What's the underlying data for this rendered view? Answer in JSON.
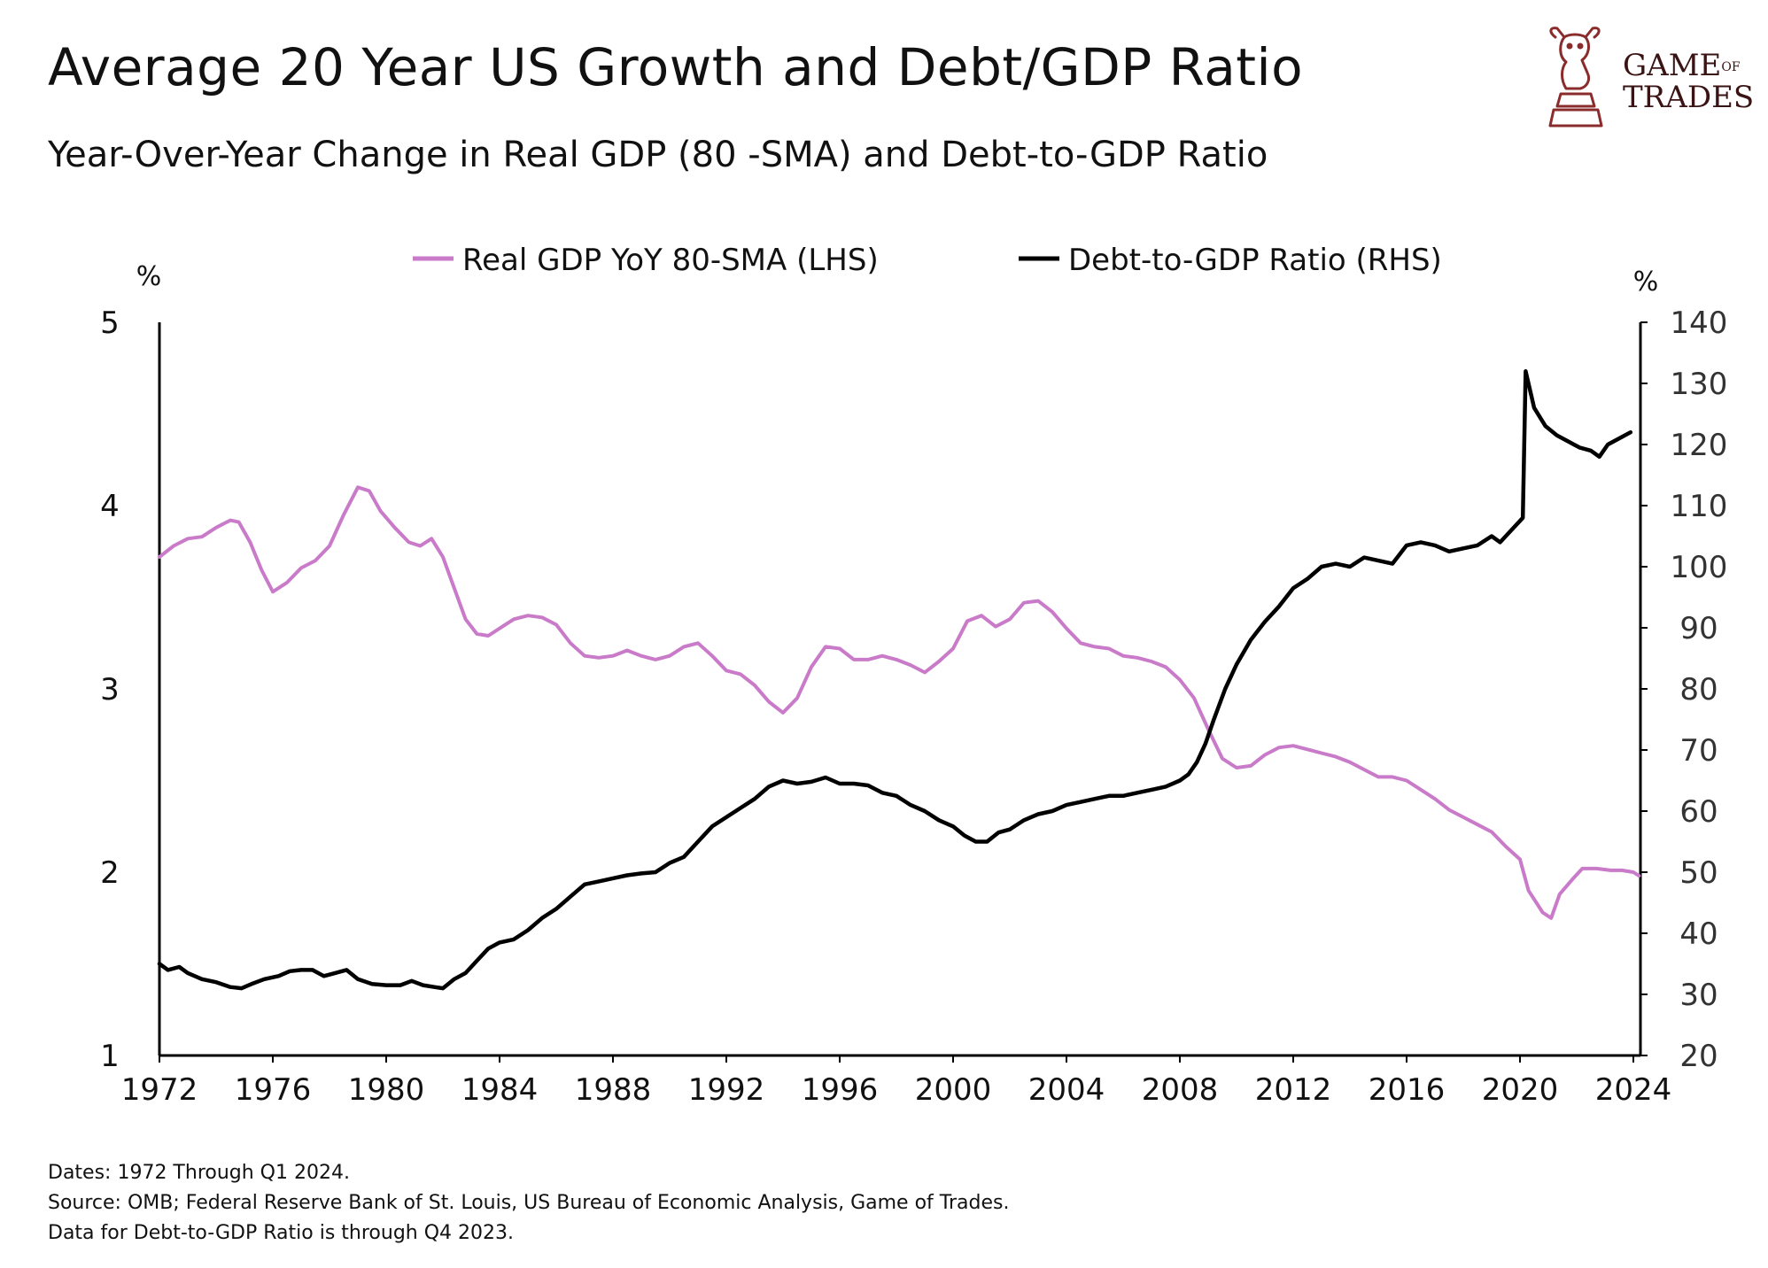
{
  "header": {
    "title": "Average 20 Year US Growth and Debt/GDP Ratio",
    "subtitle": "Year-Over-Year Change in Real GDP (80 -SMA) and Debt-to-GDP Ratio"
  },
  "logo": {
    "line1_main": "GAME",
    "line1_small": "OF",
    "line2": "TRADES",
    "color": "#8b2c2c"
  },
  "footnotes": [
    "Dates: 1972 Through Q1 2024.",
    "Source: OMB; Federal Reserve Bank of St. Louis, US Bureau of Economic Analysis, Game of Trades.",
    "Data for Debt-to-GDP Ratio is through Q4 2023."
  ],
  "chart_data": {
    "type": "line",
    "grid": false,
    "legend_position": "top-center",
    "x_ticks": [
      "1972",
      "1976",
      "1980",
      "1984",
      "1988",
      "1992",
      "1996",
      "2000",
      "2004",
      "2008",
      "2012",
      "2016",
      "2020",
      "2024"
    ],
    "xlim": [
      1972,
      2024.25
    ],
    "left_axis": {
      "unit": "%",
      "ylim": [
        1,
        5
      ],
      "ticks": [
        "1",
        "2",
        "3",
        "4",
        "5"
      ]
    },
    "right_axis": {
      "unit": "%",
      "ylim": [
        20,
        140
      ],
      "ticks": [
        "20",
        "30",
        "40",
        "50",
        "60",
        "70",
        "80",
        "90",
        "100",
        "110",
        "120",
        "130",
        "140"
      ]
    },
    "series": [
      {
        "name": "Real GDP YoY 80-SMA (LHS)",
        "axis": "left",
        "color": "#c97ac9",
        "points": [
          [
            1972.0,
            3.72
          ],
          [
            1972.5,
            3.78
          ],
          [
            1973.0,
            3.82
          ],
          [
            1973.5,
            3.83
          ],
          [
            1974.0,
            3.88
          ],
          [
            1974.5,
            3.92
          ],
          [
            1974.8,
            3.91
          ],
          [
            1975.2,
            3.8
          ],
          [
            1975.6,
            3.65
          ],
          [
            1976.0,
            3.53
          ],
          [
            1976.5,
            3.58
          ],
          [
            1977.0,
            3.66
          ],
          [
            1977.5,
            3.7
          ],
          [
            1978.0,
            3.78
          ],
          [
            1978.5,
            3.95
          ],
          [
            1979.0,
            4.1
          ],
          [
            1979.4,
            4.08
          ],
          [
            1979.8,
            3.97
          ],
          [
            1980.3,
            3.88
          ],
          [
            1980.8,
            3.8
          ],
          [
            1981.2,
            3.78
          ],
          [
            1981.6,
            3.82
          ],
          [
            1982.0,
            3.72
          ],
          [
            1982.4,
            3.55
          ],
          [
            1982.8,
            3.38
          ],
          [
            1983.2,
            3.3
          ],
          [
            1983.6,
            3.29
          ],
          [
            1984.0,
            3.33
          ],
          [
            1984.5,
            3.38
          ],
          [
            1985.0,
            3.4
          ],
          [
            1985.5,
            3.39
          ],
          [
            1986.0,
            3.35
          ],
          [
            1986.5,
            3.25
          ],
          [
            1987.0,
            3.18
          ],
          [
            1987.5,
            3.17
          ],
          [
            1988.0,
            3.18
          ],
          [
            1988.5,
            3.21
          ],
          [
            1989.0,
            3.18
          ],
          [
            1989.5,
            3.16
          ],
          [
            1990.0,
            3.18
          ],
          [
            1990.5,
            3.23
          ],
          [
            1991.0,
            3.25
          ],
          [
            1991.5,
            3.18
          ],
          [
            1992.0,
            3.1
          ],
          [
            1992.5,
            3.08
          ],
          [
            1993.0,
            3.02
          ],
          [
            1993.5,
            2.93
          ],
          [
            1994.0,
            2.87
          ],
          [
            1994.5,
            2.95
          ],
          [
            1995.0,
            3.12
          ],
          [
            1995.5,
            3.23
          ],
          [
            1996.0,
            3.22
          ],
          [
            1996.5,
            3.16
          ],
          [
            1997.0,
            3.16
          ],
          [
            1997.5,
            3.18
          ],
          [
            1998.0,
            3.16
          ],
          [
            1998.5,
            3.13
          ],
          [
            1999.0,
            3.09
          ],
          [
            1999.5,
            3.15
          ],
          [
            2000.0,
            3.22
          ],
          [
            2000.5,
            3.37
          ],
          [
            2001.0,
            3.4
          ],
          [
            2001.5,
            3.34
          ],
          [
            2002.0,
            3.38
          ],
          [
            2002.5,
            3.47
          ],
          [
            2003.0,
            3.48
          ],
          [
            2003.5,
            3.42
          ],
          [
            2004.0,
            3.33
          ],
          [
            2004.5,
            3.25
          ],
          [
            2005.0,
            3.23
          ],
          [
            2005.5,
            3.22
          ],
          [
            2006.0,
            3.18
          ],
          [
            2006.5,
            3.17
          ],
          [
            2007.0,
            3.15
          ],
          [
            2007.5,
            3.12
          ],
          [
            2008.0,
            3.05
          ],
          [
            2008.5,
            2.95
          ],
          [
            2009.0,
            2.78
          ],
          [
            2009.5,
            2.62
          ],
          [
            2010.0,
            2.57
          ],
          [
            2010.5,
            2.58
          ],
          [
            2011.0,
            2.64
          ],
          [
            2011.5,
            2.68
          ],
          [
            2012.0,
            2.69
          ],
          [
            2012.5,
            2.67
          ],
          [
            2013.0,
            2.65
          ],
          [
            2013.5,
            2.63
          ],
          [
            2014.0,
            2.6
          ],
          [
            2014.5,
            2.56
          ],
          [
            2015.0,
            2.52
          ],
          [
            2015.5,
            2.52
          ],
          [
            2016.0,
            2.5
          ],
          [
            2016.5,
            2.45
          ],
          [
            2017.0,
            2.4
          ],
          [
            2017.5,
            2.34
          ],
          [
            2018.0,
            2.3
          ],
          [
            2018.5,
            2.26
          ],
          [
            2019.0,
            2.22
          ],
          [
            2019.5,
            2.14
          ],
          [
            2020.0,
            2.07
          ],
          [
            2020.3,
            1.9
          ],
          [
            2020.8,
            1.78
          ],
          [
            2021.1,
            1.75
          ],
          [
            2021.4,
            1.88
          ],
          [
            2021.9,
            1.97
          ],
          [
            2022.2,
            2.02
          ],
          [
            2022.7,
            2.02
          ],
          [
            2023.2,
            2.01
          ],
          [
            2023.6,
            2.01
          ],
          [
            2024.0,
            2.0
          ],
          [
            2024.2,
            1.98
          ]
        ]
      },
      {
        "name": "Debt-to-GDP Ratio (RHS)",
        "axis": "right",
        "color": "#000000",
        "points": [
          [
            1972.0,
            35.0
          ],
          [
            1972.3,
            34.0
          ],
          [
            1972.7,
            34.5
          ],
          [
            1973.0,
            33.5
          ],
          [
            1973.5,
            32.5
          ],
          [
            1974.0,
            32.0
          ],
          [
            1974.5,
            31.2
          ],
          [
            1974.9,
            31.0
          ],
          [
            1975.3,
            31.8
          ],
          [
            1975.7,
            32.5
          ],
          [
            1976.2,
            33.0
          ],
          [
            1976.6,
            33.8
          ],
          [
            1977.0,
            34.0
          ],
          [
            1977.4,
            34.0
          ],
          [
            1977.8,
            33.0
          ],
          [
            1978.2,
            33.5
          ],
          [
            1978.6,
            34.0
          ],
          [
            1979.0,
            32.5
          ],
          [
            1979.5,
            31.7
          ],
          [
            1980.0,
            31.5
          ],
          [
            1980.5,
            31.5
          ],
          [
            1980.9,
            32.2
          ],
          [
            1981.3,
            31.5
          ],
          [
            1981.7,
            31.2
          ],
          [
            1982.0,
            31.0
          ],
          [
            1982.4,
            32.5
          ],
          [
            1982.8,
            33.5
          ],
          [
            1983.2,
            35.5
          ],
          [
            1983.6,
            37.5
          ],
          [
            1984.0,
            38.5
          ],
          [
            1984.5,
            39.0
          ],
          [
            1985.0,
            40.5
          ],
          [
            1985.5,
            42.5
          ],
          [
            1986.0,
            44.0
          ],
          [
            1986.5,
            46.0
          ],
          [
            1987.0,
            48.0
          ],
          [
            1987.5,
            48.5
          ],
          [
            1988.0,
            49.0
          ],
          [
            1988.5,
            49.5
          ],
          [
            1989.0,
            49.8
          ],
          [
            1989.5,
            50.0
          ],
          [
            1990.0,
            51.5
          ],
          [
            1990.5,
            52.5
          ],
          [
            1991.0,
            55.0
          ],
          [
            1991.5,
            57.5
          ],
          [
            1992.0,
            59.0
          ],
          [
            1992.5,
            60.5
          ],
          [
            1993.0,
            62.0
          ],
          [
            1993.5,
            64.0
          ],
          [
            1994.0,
            65.0
          ],
          [
            1994.5,
            64.5
          ],
          [
            1995.0,
            64.8
          ],
          [
            1995.5,
            65.5
          ],
          [
            1996.0,
            64.5
          ],
          [
            1996.5,
            64.5
          ],
          [
            1997.0,
            64.2
          ],
          [
            1997.5,
            63.0
          ],
          [
            1998.0,
            62.5
          ],
          [
            1998.5,
            61.0
          ],
          [
            1999.0,
            60.0
          ],
          [
            1999.5,
            58.5
          ],
          [
            2000.0,
            57.5
          ],
          [
            2000.4,
            56.0
          ],
          [
            2000.8,
            55.0
          ],
          [
            2001.2,
            55.0
          ],
          [
            2001.6,
            56.5
          ],
          [
            2002.0,
            57.0
          ],
          [
            2002.5,
            58.5
          ],
          [
            2003.0,
            59.5
          ],
          [
            2003.5,
            60.0
          ],
          [
            2004.0,
            61.0
          ],
          [
            2004.5,
            61.5
          ],
          [
            2005.0,
            62.0
          ],
          [
            2005.5,
            62.5
          ],
          [
            2006.0,
            62.5
          ],
          [
            2006.5,
            63.0
          ],
          [
            2007.0,
            63.5
          ],
          [
            2007.5,
            64.0
          ],
          [
            2008.0,
            65.0
          ],
          [
            2008.3,
            66.0
          ],
          [
            2008.6,
            68.0
          ],
          [
            2008.9,
            71.0
          ],
          [
            2009.2,
            75.0
          ],
          [
            2009.6,
            80.0
          ],
          [
            2010.0,
            84.0
          ],
          [
            2010.5,
            88.0
          ],
          [
            2011.0,
            91.0
          ],
          [
            2011.5,
            93.5
          ],
          [
            2012.0,
            96.5
          ],
          [
            2012.5,
            98.0
          ],
          [
            2013.0,
            100.0
          ],
          [
            2013.5,
            100.5
          ],
          [
            2014.0,
            100.0
          ],
          [
            2014.5,
            101.5
          ],
          [
            2015.0,
            101.0
          ],
          [
            2015.5,
            100.5
          ],
          [
            2016.0,
            103.5
          ],
          [
            2016.5,
            104.0
          ],
          [
            2017.0,
            103.5
          ],
          [
            2017.5,
            102.5
          ],
          [
            2018.0,
            103.0
          ],
          [
            2018.5,
            103.5
          ],
          [
            2019.0,
            105.0
          ],
          [
            2019.3,
            104.0
          ],
          [
            2019.6,
            105.5
          ],
          [
            2019.9,
            107.0
          ],
          [
            2020.1,
            108.0
          ],
          [
            2020.2,
            132.0
          ],
          [
            2020.5,
            126.0
          ],
          [
            2020.9,
            123.0
          ],
          [
            2021.3,
            121.5
          ],
          [
            2021.7,
            120.5
          ],
          [
            2022.1,
            119.5
          ],
          [
            2022.5,
            119.0
          ],
          [
            2022.8,
            118.0
          ],
          [
            2023.1,
            120.0
          ],
          [
            2023.5,
            121.0
          ],
          [
            2023.9,
            122.0
          ]
        ]
      }
    ]
  }
}
